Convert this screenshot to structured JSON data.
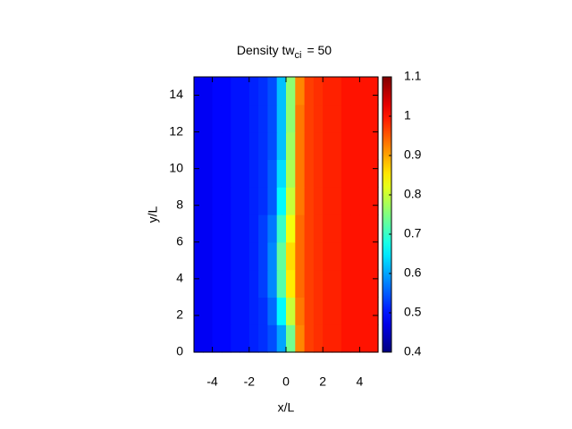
{
  "chart_data": {
    "type": "heatmap",
    "title": "Density tw",
    "title_subscript": "ci",
    "title_suffix": "=  50",
    "x_label": "x/L",
    "y_label": "y/L",
    "xlim": [
      -5,
      5
    ],
    "ylim": [
      0,
      15
    ],
    "xticks": [
      -4,
      -2,
      0,
      2,
      4
    ],
    "yticks": [
      0,
      2,
      4,
      6,
      8,
      10,
      12,
      14
    ],
    "colormap": "jet",
    "clim": [
      0.4,
      1.1
    ],
    "cticks": [
      0.4,
      0.5,
      0.6,
      0.7,
      0.8,
      0.9,
      1,
      1.1
    ],
    "x": [
      -4.75,
      -4.25,
      -3.75,
      -3.25,
      -2.75,
      -2.25,
      -1.75,
      -1.25,
      -0.75,
      -0.25,
      0.25,
      0.75,
      1.25,
      1.75,
      2.25,
      2.75,
      3.25,
      3.75,
      4.25,
      4.75
    ],
    "y": [
      0.75,
      2.25,
      3.75,
      5.25,
      6.75,
      8.25,
      9.75,
      11.25,
      12.75,
      14.25
    ],
    "z": [
      [
        0.48,
        0.48,
        0.49,
        0.49,
        0.5,
        0.5,
        0.51,
        0.52,
        0.54,
        0.6,
        0.74,
        0.92,
        0.97,
        0.98,
        0.99,
        0.99,
        1,
        1,
        1,
        1
      ],
      [
        0.48,
        0.48,
        0.49,
        0.49,
        0.5,
        0.5,
        0.51,
        0.52,
        0.56,
        0.66,
        0.8,
        0.93,
        0.97,
        0.98,
        0.99,
        0.99,
        1,
        1,
        1,
        1
      ],
      [
        0.48,
        0.48,
        0.49,
        0.49,
        0.5,
        0.5,
        0.51,
        0.53,
        0.58,
        0.72,
        0.85,
        0.94,
        0.97,
        0.98,
        0.99,
        0.99,
        1,
        1,
        1,
        1
      ],
      [
        0.48,
        0.48,
        0.49,
        0.49,
        0.5,
        0.5,
        0.51,
        0.53,
        0.58,
        0.73,
        0.86,
        0.94,
        0.97,
        0.98,
        0.99,
        0.99,
        1,
        1,
        1,
        1
      ],
      [
        0.48,
        0.48,
        0.49,
        0.49,
        0.5,
        0.5,
        0.51,
        0.53,
        0.57,
        0.7,
        0.83,
        0.94,
        0.97,
        0.98,
        0.99,
        0.99,
        1,
        1,
        1,
        1
      ],
      [
        0.48,
        0.48,
        0.49,
        0.49,
        0.5,
        0.5,
        0.51,
        0.52,
        0.55,
        0.66,
        0.8,
        0.93,
        0.97,
        0.98,
        0.99,
        0.99,
        1,
        1,
        1,
        1
      ],
      [
        0.48,
        0.48,
        0.49,
        0.49,
        0.5,
        0.5,
        0.51,
        0.52,
        0.55,
        0.64,
        0.78,
        0.93,
        0.97,
        0.98,
        0.99,
        0.99,
        1,
        1,
        1,
        1
      ],
      [
        0.48,
        0.48,
        0.49,
        0.49,
        0.5,
        0.5,
        0.51,
        0.52,
        0.54,
        0.62,
        0.77,
        0.93,
        0.97,
        0.98,
        0.99,
        0.99,
        1,
        1,
        1,
        1
      ],
      [
        0.48,
        0.48,
        0.49,
        0.49,
        0.5,
        0.5,
        0.51,
        0.52,
        0.54,
        0.62,
        0.76,
        0.93,
        0.97,
        0.98,
        0.99,
        0.99,
        1,
        1,
        1,
        1
      ],
      [
        0.48,
        0.48,
        0.49,
        0.49,
        0.5,
        0.5,
        0.51,
        0.52,
        0.54,
        0.62,
        0.76,
        0.92,
        0.97,
        0.98,
        0.99,
        0.99,
        1,
        1,
        1,
        1
      ]
    ]
  }
}
